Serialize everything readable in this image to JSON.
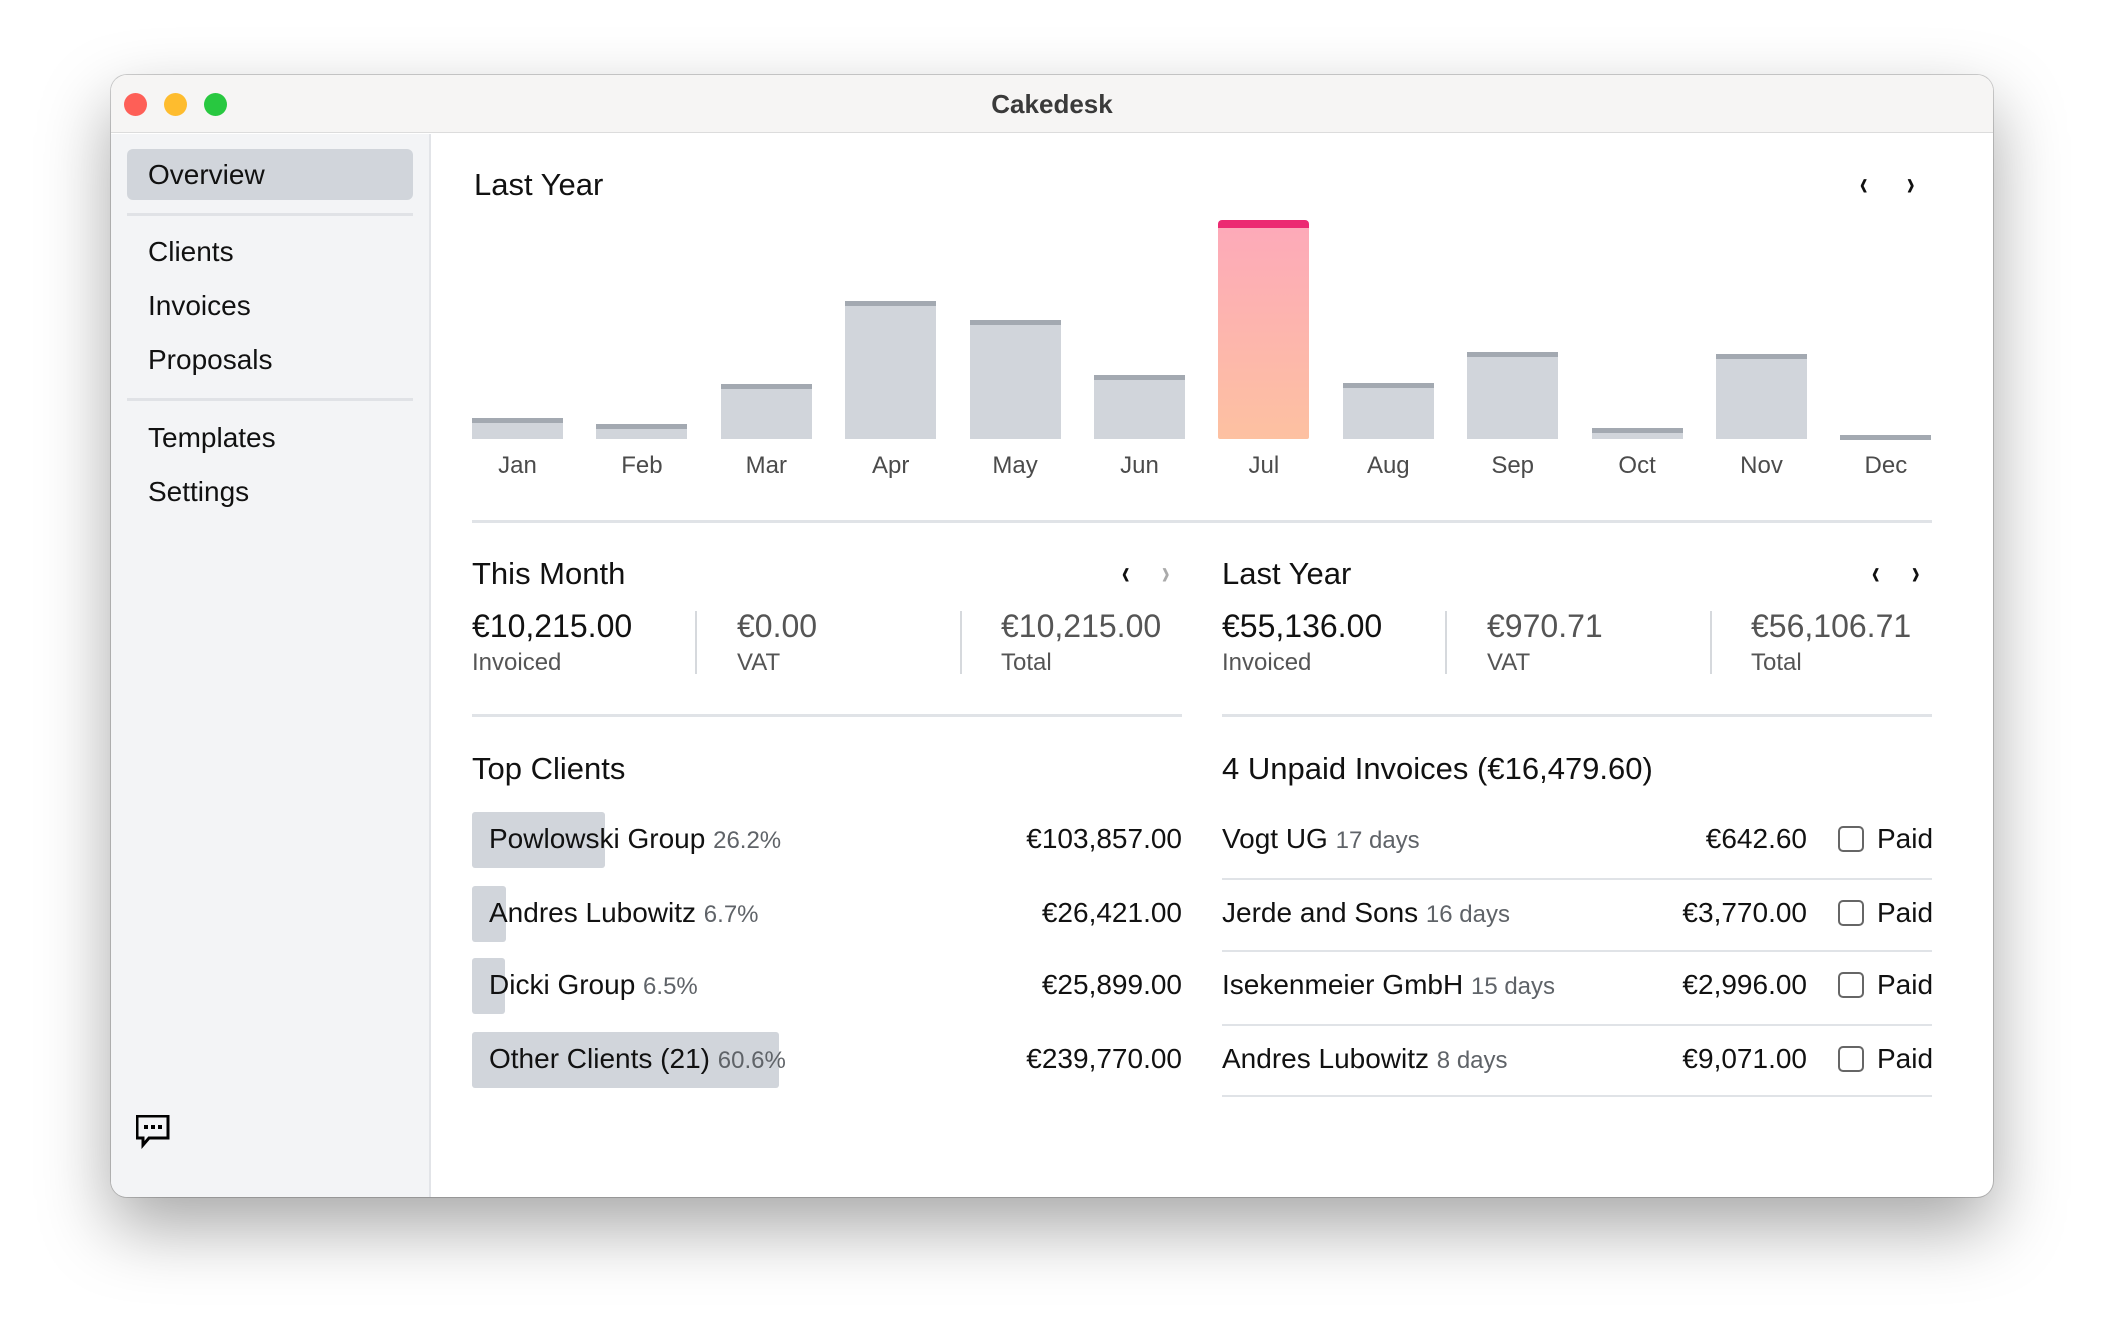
{
  "window": {
    "title": "Cakedesk"
  },
  "sidebar": {
    "items": [
      {
        "label": "Overview",
        "active": true
      },
      {
        "label": "Clients"
      },
      {
        "label": "Invoices"
      },
      {
        "label": "Proposals"
      },
      {
        "label": "Templates"
      },
      {
        "label": "Settings"
      }
    ],
    "feedback_icon": "chat-bubble-icon"
  },
  "chart_data": {
    "type": "bar",
    "title": "Last Year",
    "categories": [
      "Jan",
      "Feb",
      "Mar",
      "Apr",
      "May",
      "Jun",
      "Jul",
      "Aug",
      "Sep",
      "Oct",
      "Nov",
      "Dec"
    ],
    "values": [
      1300,
      950,
      3500,
      8700,
      7500,
      4050,
      13850,
      3550,
      5500,
      700,
      5400,
      200
    ],
    "highlighted": "Jul",
    "colors": {
      "bar": "#d1d5db",
      "bar_top": "#a3a9b1",
      "highlight_top": "#ec2a72",
      "highlight_gradient": [
        "#fdaab9",
        "#fdc1a1"
      ]
    },
    "grid": false
  },
  "this_month": {
    "title": "This Month",
    "stats": [
      {
        "value": "€10,215.00",
        "label": "Invoiced"
      },
      {
        "value": "€0.00",
        "label": "VAT"
      },
      {
        "value": "€10,215.00",
        "label": "Total"
      }
    ]
  },
  "last_year": {
    "title": "Last Year",
    "stats": [
      {
        "value": "€55,136.00",
        "label": "Invoiced"
      },
      {
        "value": "€970.71",
        "label": "VAT"
      },
      {
        "value": "€56,106.71",
        "label": "Total"
      }
    ]
  },
  "top_clients": {
    "title": "Top Clients",
    "rows": [
      {
        "name": "Powlowski Group",
        "share": "26.2%",
        "share_value": 26.2,
        "amount": "€103,857.00"
      },
      {
        "name": "Andres Lubowitz",
        "share": "6.7%",
        "share_value": 6.7,
        "amount": "€26,421.00"
      },
      {
        "name": "Dicki Group",
        "share": "6.5%",
        "share_value": 6.5,
        "amount": "€25,899.00"
      },
      {
        "name": "Other Clients (21)",
        "share": "60.6%",
        "share_value": 60.6,
        "amount": "€239,770.00"
      }
    ]
  },
  "unpaid": {
    "title": "4 Unpaid Invoices (€16,479.60)",
    "paid_label": "Paid",
    "rows": [
      {
        "client": "Vogt UG",
        "age": "17 days",
        "amount": "€642.60",
        "paid": false
      },
      {
        "client": "Jerde and Sons",
        "age": "16 days",
        "amount": "€3,770.00",
        "paid": false
      },
      {
        "client": "Isekenmeier GmbH",
        "age": "15 days",
        "amount": "€2,996.00",
        "paid": false
      },
      {
        "client": "Andres Lubowitz",
        "age": "8 days",
        "amount": "€9,071.00",
        "paid": false
      }
    ]
  }
}
